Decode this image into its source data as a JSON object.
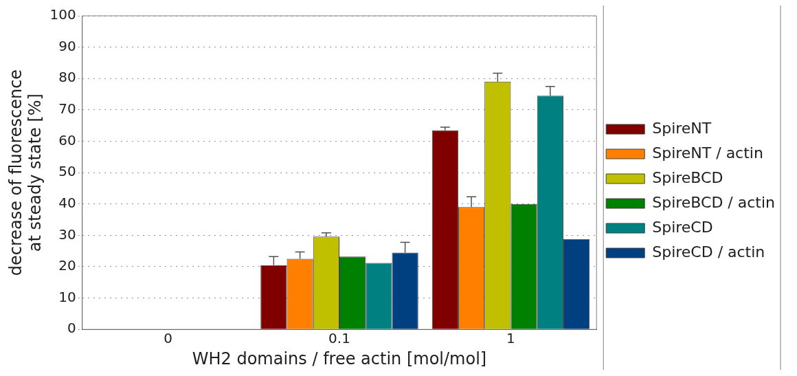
{
  "chart_data": {
    "type": "bar",
    "xlabel": "WH2 domains / free actin [mol/mol]",
    "ylabel": "decrease of fluorescence\nat steady state [%]",
    "categories": [
      "0",
      "0.1",
      "1"
    ],
    "series": [
      {
        "name": "SpireNT",
        "color": "#800000",
        "values": [
          null,
          20.5,
          63.5
        ],
        "errors": [
          null,
          2.7,
          1
        ]
      },
      {
        "name": "SpireNT / actin",
        "color": "#ff8000",
        "values": [
          null,
          22.5,
          39
        ],
        "errors": [
          null,
          2.2,
          3.3
        ]
      },
      {
        "name": "SpireBCD",
        "color": "#c0c000",
        "values": [
          null,
          29.6,
          79
        ],
        "errors": [
          null,
          1.2,
          2.7
        ]
      },
      {
        "name": "SpireBCD / actin",
        "color": "#008000",
        "values": [
          null,
          23.2,
          40
        ]
      },
      {
        "name": "SpireCD",
        "color": "#008080",
        "values": [
          null,
          21.2,
          74.5
        ],
        "errors": [
          null,
          null,
          3
        ]
      },
      {
        "name": "SpireCD / actin",
        "color": "#004080",
        "values": [
          null,
          24.5,
          28.8
        ],
        "errors": [
          null,
          3.3,
          null
        ]
      }
    ],
    "ylim": [
      0,
      100
    ],
    "yticks": [
      0,
      10,
      20,
      30,
      40,
      50,
      60,
      70,
      80,
      90,
      100
    ],
    "grid": "y",
    "legend": "right"
  }
}
